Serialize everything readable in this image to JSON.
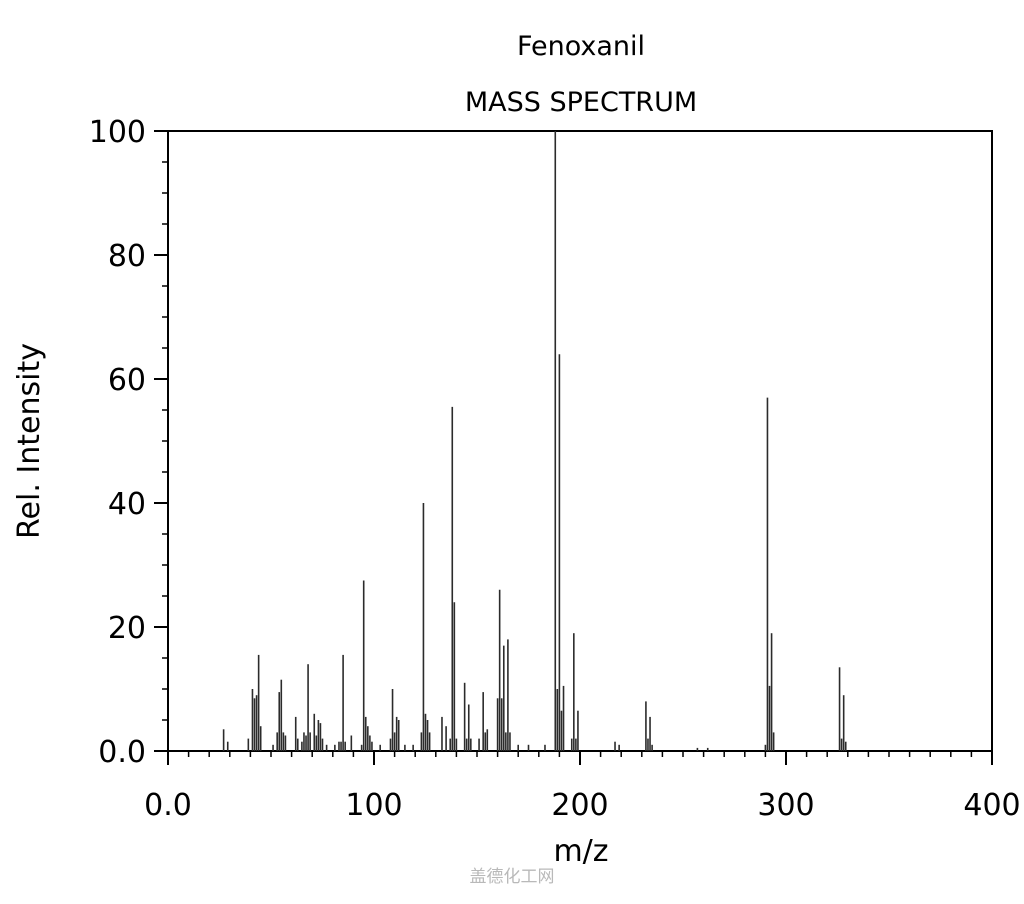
{
  "chart_data": {
    "type": "bar",
    "title": "Fenoxanil",
    "subtitle": "MASS SPECTRUM",
    "xlabel": "m/z",
    "ylabel": "Rel. Intensity",
    "xlim": [
      0,
      400
    ],
    "ylim": [
      0,
      100
    ],
    "x_tick_labels": [
      "0.0",
      "100",
      "200",
      "300",
      "400"
    ],
    "y_tick_labels": [
      "0.0",
      "20",
      "40",
      "60",
      "80",
      "100"
    ],
    "grid": false,
    "peaks": [
      {
        "mz": 27,
        "intensity": 3.5
      },
      {
        "mz": 29,
        "intensity": 1.5
      },
      {
        "mz": 39,
        "intensity": 2
      },
      {
        "mz": 41,
        "intensity": 10
      },
      {
        "mz": 42,
        "intensity": 8.5
      },
      {
        "mz": 43,
        "intensity": 9
      },
      {
        "mz": 44,
        "intensity": 15.5
      },
      {
        "mz": 45,
        "intensity": 4
      },
      {
        "mz": 51,
        "intensity": 1
      },
      {
        "mz": 53,
        "intensity": 3
      },
      {
        "mz": 54,
        "intensity": 9.5
      },
      {
        "mz": 55,
        "intensity": 11.5
      },
      {
        "mz": 56,
        "intensity": 3
      },
      {
        "mz": 57,
        "intensity": 2.5
      },
      {
        "mz": 62,
        "intensity": 5.5
      },
      {
        "mz": 63,
        "intensity": 2
      },
      {
        "mz": 65,
        "intensity": 1.5
      },
      {
        "mz": 66,
        "intensity": 3
      },
      {
        "mz": 67,
        "intensity": 2.5
      },
      {
        "mz": 68,
        "intensity": 14
      },
      {
        "mz": 69,
        "intensity": 3
      },
      {
        "mz": 71,
        "intensity": 6
      },
      {
        "mz": 72,
        "intensity": 2.5
      },
      {
        "mz": 73,
        "intensity": 5
      },
      {
        "mz": 74,
        "intensity": 4.5
      },
      {
        "mz": 75,
        "intensity": 2
      },
      {
        "mz": 77,
        "intensity": 1
      },
      {
        "mz": 81,
        "intensity": 1
      },
      {
        "mz": 83,
        "intensity": 1.5
      },
      {
        "mz": 84,
        "intensity": 1.5
      },
      {
        "mz": 85,
        "intensity": 15.5
      },
      {
        "mz": 86,
        "intensity": 1.5
      },
      {
        "mz": 89,
        "intensity": 2.5
      },
      {
        "mz": 94,
        "intensity": 1
      },
      {
        "mz": 95,
        "intensity": 27.5
      },
      {
        "mz": 96,
        "intensity": 5.5
      },
      {
        "mz": 97,
        "intensity": 4
      },
      {
        "mz": 98,
        "intensity": 2.5
      },
      {
        "mz": 99,
        "intensity": 1.5
      },
      {
        "mz": 103,
        "intensity": 1
      },
      {
        "mz": 108,
        "intensity": 2
      },
      {
        "mz": 109,
        "intensity": 10
      },
      {
        "mz": 110,
        "intensity": 3
      },
      {
        "mz": 111,
        "intensity": 5.5
      },
      {
        "mz": 112,
        "intensity": 5
      },
      {
        "mz": 115,
        "intensity": 1
      },
      {
        "mz": 119,
        "intensity": 1
      },
      {
        "mz": 123,
        "intensity": 3
      },
      {
        "mz": 124,
        "intensity": 40
      },
      {
        "mz": 125,
        "intensity": 6
      },
      {
        "mz": 126,
        "intensity": 5
      },
      {
        "mz": 127,
        "intensity": 3
      },
      {
        "mz": 133,
        "intensity": 5.5
      },
      {
        "mz": 135,
        "intensity": 4
      },
      {
        "mz": 137,
        "intensity": 2
      },
      {
        "mz": 138,
        "intensity": 55.5
      },
      {
        "mz": 139,
        "intensity": 24
      },
      {
        "mz": 140,
        "intensity": 2
      },
      {
        "mz": 144,
        "intensity": 11
      },
      {
        "mz": 145,
        "intensity": 2
      },
      {
        "mz": 146,
        "intensity": 7.5
      },
      {
        "mz": 147,
        "intensity": 2
      },
      {
        "mz": 151,
        "intensity": 2
      },
      {
        "mz": 153,
        "intensity": 9.5
      },
      {
        "mz": 154,
        "intensity": 3
      },
      {
        "mz": 155,
        "intensity": 3.5
      },
      {
        "mz": 160,
        "intensity": 8.5
      },
      {
        "mz": 161,
        "intensity": 26
      },
      {
        "mz": 162,
        "intensity": 8.5
      },
      {
        "mz": 163,
        "intensity": 17
      },
      {
        "mz": 164,
        "intensity": 3
      },
      {
        "mz": 165,
        "intensity": 18
      },
      {
        "mz": 166,
        "intensity": 3
      },
      {
        "mz": 170,
        "intensity": 1
      },
      {
        "mz": 175,
        "intensity": 1
      },
      {
        "mz": 183,
        "intensity": 1
      },
      {
        "mz": 188,
        "intensity": 100
      },
      {
        "mz": 189,
        "intensity": 10
      },
      {
        "mz": 190,
        "intensity": 64
      },
      {
        "mz": 191,
        "intensity": 6.5
      },
      {
        "mz": 192,
        "intensity": 10.5
      },
      {
        "mz": 196,
        "intensity": 2
      },
      {
        "mz": 197,
        "intensity": 19
      },
      {
        "mz": 198,
        "intensity": 2
      },
      {
        "mz": 199,
        "intensity": 6.5
      },
      {
        "mz": 217,
        "intensity": 1.5
      },
      {
        "mz": 219,
        "intensity": 1
      },
      {
        "mz": 232,
        "intensity": 8
      },
      {
        "mz": 233,
        "intensity": 2
      },
      {
        "mz": 234,
        "intensity": 5.5
      },
      {
        "mz": 235,
        "intensity": 1
      },
      {
        "mz": 257,
        "intensity": 0.5
      },
      {
        "mz": 262,
        "intensity": 0.5
      },
      {
        "mz": 290,
        "intensity": 1
      },
      {
        "mz": 291,
        "intensity": 57
      },
      {
        "mz": 292,
        "intensity": 10.5
      },
      {
        "mz": 293,
        "intensity": 19
      },
      {
        "mz": 294,
        "intensity": 3
      },
      {
        "mz": 326,
        "intensity": 13.5
      },
      {
        "mz": 327,
        "intensity": 2
      },
      {
        "mz": 328,
        "intensity": 9
      },
      {
        "mz": 329,
        "intensity": 1.5
      }
    ]
  },
  "watermark": "盖德化工网"
}
